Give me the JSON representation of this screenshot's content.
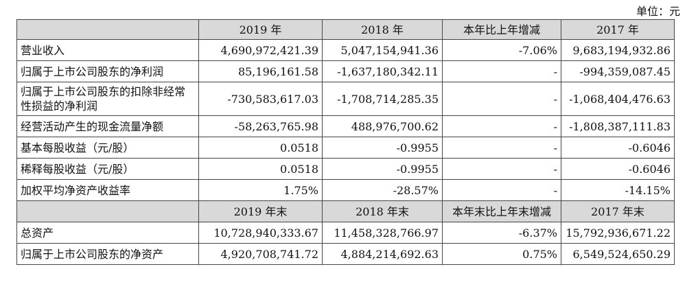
{
  "unit_label": "单位：元",
  "header1": [
    "",
    "2019 年",
    "2018 年",
    "本年比上年增减",
    "2017 年"
  ],
  "rows1": [
    [
      "营业收入",
      "4,690,972,421.39",
      "5,047,154,941.36",
      "-7.06%",
      "9,683,194,932.86"
    ],
    [
      "归属于上市公司股东的净利润",
      "85,196,161.58",
      "-1,637,180,342.11",
      "-",
      "-994,359,087.45"
    ],
    [
      "归属于上市公司股东的扣除非经常性损益的净利润",
      "-730,583,617.03",
      "-1,708,714,285.35",
      "-",
      "-1,068,404,476.63"
    ],
    [
      "经营活动产生的现金流量净额",
      "-58,263,765.98",
      "488,976,700.62",
      "-",
      "-1,808,387,111.83"
    ],
    [
      "基本每股收益（元/股）",
      "0.0518",
      "-0.9955",
      "-",
      "-0.6046"
    ],
    [
      "稀释每股收益（元/股）",
      "0.0518",
      "-0.9955",
      "-",
      "-0.6046"
    ],
    [
      "加权平均净资产收益率",
      "1.75%",
      "-28.57%",
      "-",
      "-14.15%"
    ]
  ],
  "header2": [
    "",
    "2019 年末",
    "2018 年末",
    "本年末比上年末增减",
    "2017 年末"
  ],
  "rows2": [
    [
      "总资产",
      "10,728,940,333.67",
      "11,458,328,766.97",
      "-6.37%",
      "15,792,936,671.22"
    ],
    [
      "归属于上市公司股东的净资产",
      "4,920,708,741.72",
      "4,884,214,692.63",
      "0.75%",
      "6,549,524,650.29"
    ]
  ]
}
